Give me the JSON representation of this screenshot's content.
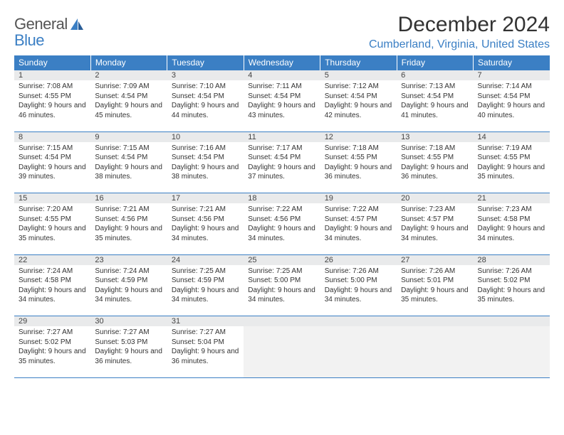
{
  "logo": {
    "line1": "General",
    "line2": "Blue"
  },
  "title": "December 2024",
  "location": "Cumberland, Virginia, United States",
  "colors": {
    "header_bg": "#3b7fc4",
    "header_text": "#ffffff",
    "daynum_bg": "#e9eaeb",
    "border": "#3b7fc4",
    "empty_bg": "#f2f2f2",
    "location_text": "#3b7fc4",
    "body_text": "#333333"
  },
  "columns": [
    "Sunday",
    "Monday",
    "Tuesday",
    "Wednesday",
    "Thursday",
    "Friday",
    "Saturday"
  ],
  "weeks": [
    [
      {
        "n": "1",
        "sunrise": "7:08 AM",
        "sunset": "4:55 PM",
        "dl": "9 hours and 46 minutes."
      },
      {
        "n": "2",
        "sunrise": "7:09 AM",
        "sunset": "4:54 PM",
        "dl": "9 hours and 45 minutes."
      },
      {
        "n": "3",
        "sunrise": "7:10 AM",
        "sunset": "4:54 PM",
        "dl": "9 hours and 44 minutes."
      },
      {
        "n": "4",
        "sunrise": "7:11 AM",
        "sunset": "4:54 PM",
        "dl": "9 hours and 43 minutes."
      },
      {
        "n": "5",
        "sunrise": "7:12 AM",
        "sunset": "4:54 PM",
        "dl": "9 hours and 42 minutes."
      },
      {
        "n": "6",
        "sunrise": "7:13 AM",
        "sunset": "4:54 PM",
        "dl": "9 hours and 41 minutes."
      },
      {
        "n": "7",
        "sunrise": "7:14 AM",
        "sunset": "4:54 PM",
        "dl": "9 hours and 40 minutes."
      }
    ],
    [
      {
        "n": "8",
        "sunrise": "7:15 AM",
        "sunset": "4:54 PM",
        "dl": "9 hours and 39 minutes."
      },
      {
        "n": "9",
        "sunrise": "7:15 AM",
        "sunset": "4:54 PM",
        "dl": "9 hours and 38 minutes."
      },
      {
        "n": "10",
        "sunrise": "7:16 AM",
        "sunset": "4:54 PM",
        "dl": "9 hours and 38 minutes."
      },
      {
        "n": "11",
        "sunrise": "7:17 AM",
        "sunset": "4:54 PM",
        "dl": "9 hours and 37 minutes."
      },
      {
        "n": "12",
        "sunrise": "7:18 AM",
        "sunset": "4:55 PM",
        "dl": "9 hours and 36 minutes."
      },
      {
        "n": "13",
        "sunrise": "7:18 AM",
        "sunset": "4:55 PM",
        "dl": "9 hours and 36 minutes."
      },
      {
        "n": "14",
        "sunrise": "7:19 AM",
        "sunset": "4:55 PM",
        "dl": "9 hours and 35 minutes."
      }
    ],
    [
      {
        "n": "15",
        "sunrise": "7:20 AM",
        "sunset": "4:55 PM",
        "dl": "9 hours and 35 minutes."
      },
      {
        "n": "16",
        "sunrise": "7:21 AM",
        "sunset": "4:56 PM",
        "dl": "9 hours and 35 minutes."
      },
      {
        "n": "17",
        "sunrise": "7:21 AM",
        "sunset": "4:56 PM",
        "dl": "9 hours and 34 minutes."
      },
      {
        "n": "18",
        "sunrise": "7:22 AM",
        "sunset": "4:56 PM",
        "dl": "9 hours and 34 minutes."
      },
      {
        "n": "19",
        "sunrise": "7:22 AM",
        "sunset": "4:57 PM",
        "dl": "9 hours and 34 minutes."
      },
      {
        "n": "20",
        "sunrise": "7:23 AM",
        "sunset": "4:57 PM",
        "dl": "9 hours and 34 minutes."
      },
      {
        "n": "21",
        "sunrise": "7:23 AM",
        "sunset": "4:58 PM",
        "dl": "9 hours and 34 minutes."
      }
    ],
    [
      {
        "n": "22",
        "sunrise": "7:24 AM",
        "sunset": "4:58 PM",
        "dl": "9 hours and 34 minutes."
      },
      {
        "n": "23",
        "sunrise": "7:24 AM",
        "sunset": "4:59 PM",
        "dl": "9 hours and 34 minutes."
      },
      {
        "n": "24",
        "sunrise": "7:25 AM",
        "sunset": "4:59 PM",
        "dl": "9 hours and 34 minutes."
      },
      {
        "n": "25",
        "sunrise": "7:25 AM",
        "sunset": "5:00 PM",
        "dl": "9 hours and 34 minutes."
      },
      {
        "n": "26",
        "sunrise": "7:26 AM",
        "sunset": "5:00 PM",
        "dl": "9 hours and 34 minutes."
      },
      {
        "n": "27",
        "sunrise": "7:26 AM",
        "sunset": "5:01 PM",
        "dl": "9 hours and 35 minutes."
      },
      {
        "n": "28",
        "sunrise": "7:26 AM",
        "sunset": "5:02 PM",
        "dl": "9 hours and 35 minutes."
      }
    ],
    [
      {
        "n": "29",
        "sunrise": "7:27 AM",
        "sunset": "5:02 PM",
        "dl": "9 hours and 35 minutes."
      },
      {
        "n": "30",
        "sunrise": "7:27 AM",
        "sunset": "5:03 PM",
        "dl": "9 hours and 36 minutes."
      },
      {
        "n": "31",
        "sunrise": "7:27 AM",
        "sunset": "5:04 PM",
        "dl": "9 hours and 36 minutes."
      },
      null,
      null,
      null,
      null
    ]
  ],
  "labels": {
    "sunrise": "Sunrise:",
    "sunset": "Sunset:",
    "daylight": "Daylight:"
  }
}
